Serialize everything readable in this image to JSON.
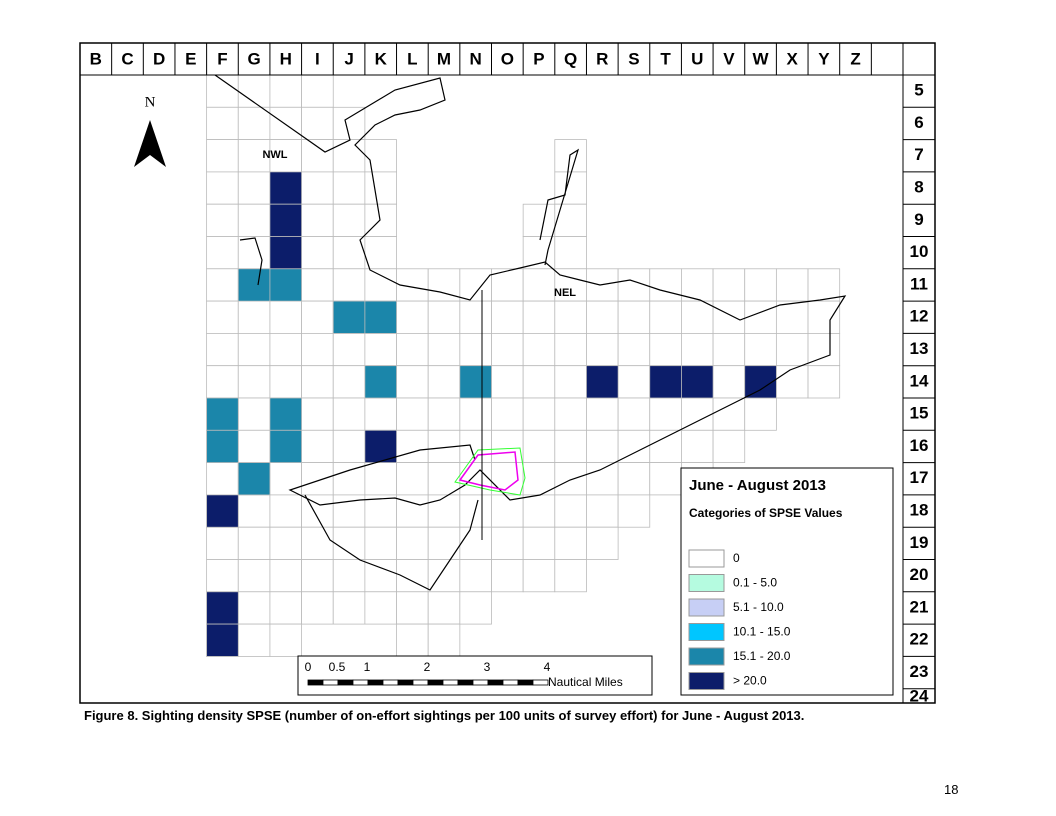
{
  "map": {
    "column_labels": [
      "B",
      "C",
      "D",
      "E",
      "F",
      "G",
      "H",
      "I",
      "J",
      "K",
      "L",
      "M",
      "N",
      "O",
      "P",
      "Q",
      "R",
      "S",
      "T",
      "U",
      "V",
      "W",
      "X",
      "Y",
      "Z"
    ],
    "row_labels": [
      "5",
      "6",
      "7",
      "8",
      "9",
      "10",
      "11",
      "12",
      "13",
      "14",
      "15",
      "16",
      "17",
      "18",
      "19",
      "20",
      "21",
      "22",
      "23",
      "24"
    ],
    "north": "N",
    "labels": [
      "NWL",
      "NEL"
    ],
    "legend": {
      "title": "June - August 2013",
      "subtitle": "Categories of SPSE Values",
      "items": [
        {
          "label": "0",
          "color": "#ffffff"
        },
        {
          "label": "0.1 - 5.0",
          "color": "#b5fbe0"
        },
        {
          "label": "5.1 - 10.0",
          "color": "#c7cff5"
        },
        {
          "label": "10.1 - 15.0",
          "color": "#00c6ff"
        },
        {
          "label": "15.1 - 20.0",
          "color": "#1b86aa"
        },
        {
          "label": "> 20.0",
          "color": "#0c1d6a"
        }
      ]
    },
    "scale_bar": {
      "ticks": [
        "0",
        "0.5",
        "1",
        "2",
        "3",
        "4"
      ],
      "unit": "Nautical Miles"
    }
  },
  "caption": "Figure 8. Sighting density SPSE (number of on-effort sightings per 100 units of survey effort) for June - August 2013.",
  "page_number": "18"
}
